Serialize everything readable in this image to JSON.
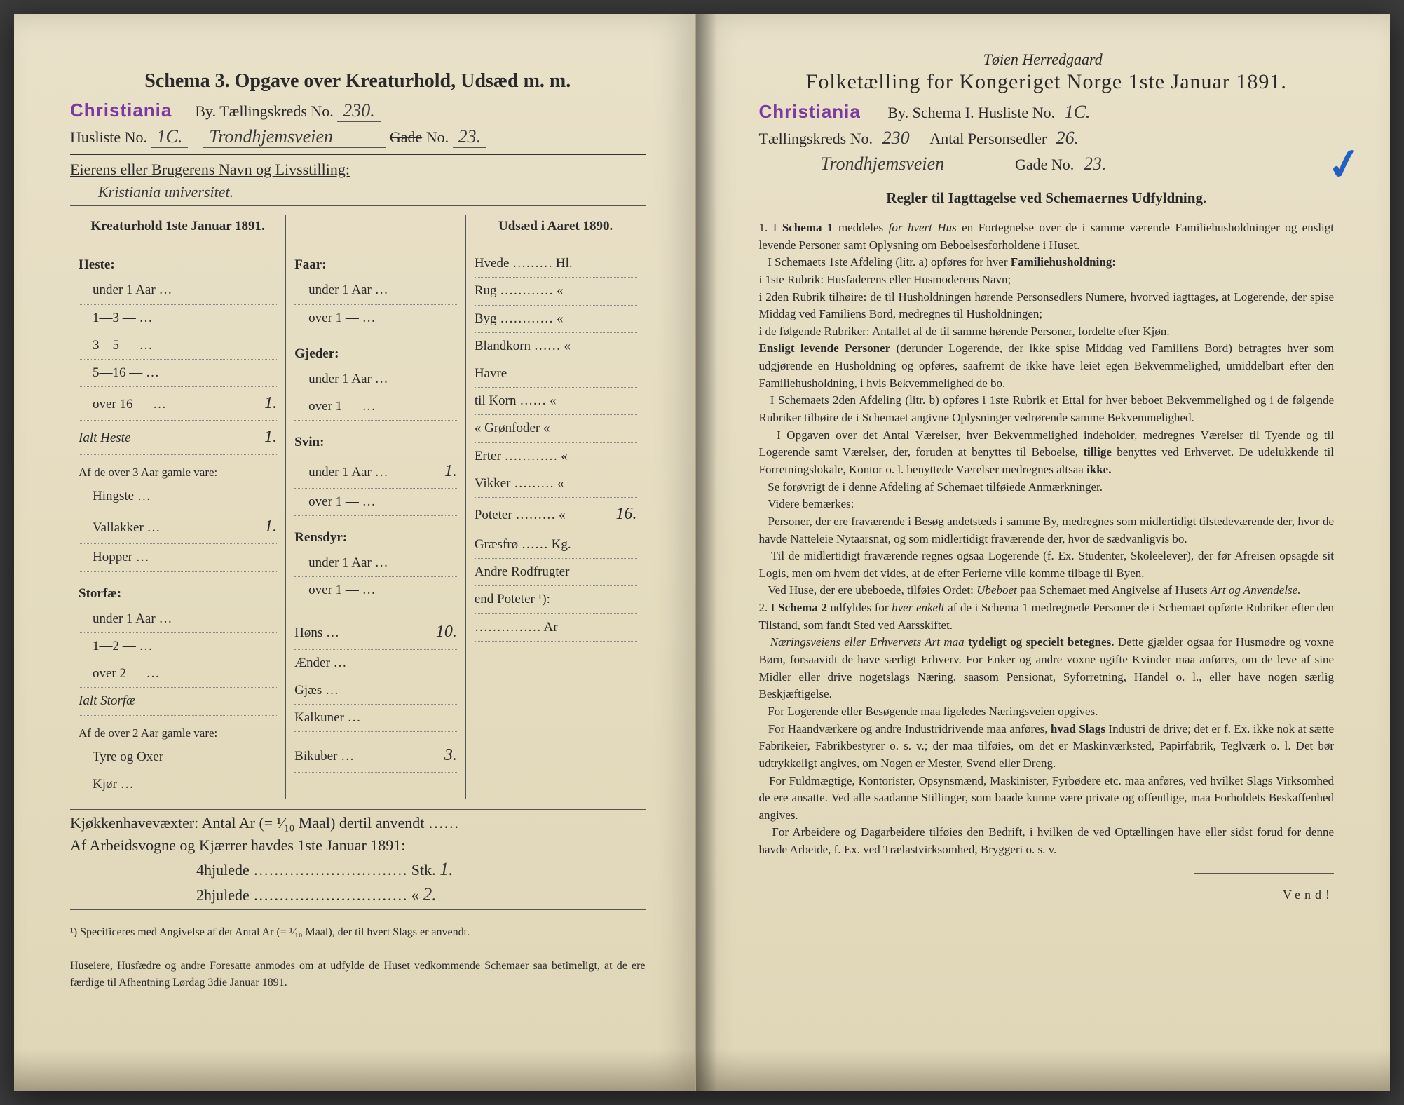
{
  "left": {
    "schema_title": "Schema 3.  Opgave over Kreaturhold, Udsæd m. m.",
    "stamp": "Christiania",
    "by_label": "By.  Tællingskreds No.",
    "kreds_no": "230.",
    "husliste_label": "Husliste No.",
    "husliste_no": "1C.",
    "gade_hand": "Trondhjemsveien",
    "gade_label": "Gade",
    "gade_no_label": "No.",
    "gade_no": "23.",
    "owner_label": "Eierens eller Brugerens Navn og Livsstilling:",
    "owner_hand": "Kristiania universitet.",
    "col1_header": "Kreaturhold 1ste Januar 1891.",
    "col3_header": "Udsæd i Aaret 1890.",
    "heste": {
      "title": "Heste:",
      "rows": [
        "under 1 Aar …",
        "1—3 — …",
        "3—5 — …",
        "5—16 — …",
        "over 16 — …"
      ],
      "over16_val": "1.",
      "ialt_label": "Ialt Heste",
      "ialt_val": "1.",
      "over3_label": "Af de over 3 Aar gamle vare:",
      "hingste": "Hingste …",
      "vallakker": "Vallakker …",
      "vallakker_val": "1.",
      "hopper": "Hopper …"
    },
    "storfae": {
      "title": "Storfæ:",
      "rows": [
        "under 1 Aar …",
        "1—2 — …",
        "over 2 — …"
      ],
      "ialt_label": "Ialt Storfæ",
      "over2_label": "Af de over 2 Aar gamle vare:",
      "tyre": "Tyre og Oxer",
      "kjor": "Kjør …"
    },
    "faar": {
      "title": "Faar:",
      "u1": "under 1 Aar …",
      "o1": "over 1 — …"
    },
    "gjeder": {
      "title": "Gjeder:",
      "u1": "under 1 Aar …",
      "o1": "over 1 — …"
    },
    "svin": {
      "title": "Svin:",
      "u1": "under 1 Aar …",
      "u1_val": "1.",
      "o1": "over 1 — …"
    },
    "rensdyr": {
      "title": "Rensdyr:",
      "u1": "under 1 Aar …",
      "o1": "over 1 — …"
    },
    "hons": {
      "label": "Høns …",
      "val": "10."
    },
    "aender": "Ænder …",
    "gjaes": "Gjæs …",
    "kalkuner": "Kalkuner …",
    "bikuber": {
      "label": "Bikuber …",
      "val": "3."
    },
    "udsaed": {
      "rows": [
        {
          "l": "Hvede ……… Hl.",
          "v": ""
        },
        {
          "l": "Rug ………… «",
          "v": ""
        },
        {
          "l": "Byg ………… «",
          "v": ""
        },
        {
          "l": "Blandkorn …… «",
          "v": ""
        },
        {
          "l": "Havre",
          "v": ""
        },
        {
          "l": "   til Korn …… «",
          "v": ""
        },
        {
          "l": "   « Grønfoder «",
          "v": ""
        },
        {
          "l": "Erter ………… «",
          "v": ""
        },
        {
          "l": "Vikker ……… «",
          "v": ""
        },
        {
          "l": "Poteter ……… «",
          "v": "16."
        },
        {
          "l": "Græsfrø …… Kg.",
          "v": ""
        },
        {
          "l": "Andre Rodfrugter",
          "v": ""
        },
        {
          "l": "  end Poteter ¹):",
          "v": ""
        },
        {
          "l": "…………… Ar",
          "v": ""
        }
      ]
    },
    "kjokken_label": "Kjøkkenhavevæxter:  Antal Ar (= ¹⁄₁₀ Maal) dertil anvendt ……",
    "arbeid_label": "Af Arbeidsvogne og Kjærrer havdes 1ste Januar 1891:",
    "hjul4_label": "4hjulede ………………………… Stk.",
    "hjul4_val": "1.",
    "hjul2_label": "2hjulede …………………………  «",
    "hjul2_val": "2.",
    "footnote": "¹) Specificeres med Angivelse af det Antal Ar (= ¹⁄₁₀ Maal), der til hvert Slags er anvendt.",
    "request": "Huseiere, Husfædre og andre Foresatte anmodes om at udfylde de Huset vedkommende Schemaer saa betimeligt, at de ere færdige til Afhentning Lørdag 3die Januar 1891."
  },
  "right": {
    "annotation": "Tøien Herredgaard",
    "title": "Folketælling for Kongeriget Norge 1ste Januar 1891.",
    "stamp": "Christiania",
    "by_label": "By.   Schema I.   Husliste No.",
    "husliste_no": "1C.",
    "kreds_label": "Tællingskreds No.",
    "kreds_no": "230",
    "antal_label": "Antal Personsedler",
    "antal_val": "26.",
    "gade_hand": "Trondhjemsveien",
    "gade_label": "Gade No.",
    "gade_no": "23.",
    "rules_header": "Regler til Iagttagelse ved Schemaernes Udfyldning.",
    "rules_html": "1. I <b>Schema 1</b> meddeles <i>for hvert Hus</i> en Fortegnelse over de i samme værende Familiehusholdninger og ensligt levende Personer samt Oplysning om Beboelsesforholdene i Huset.<br>&nbsp;&nbsp;&nbsp;I Schemaets 1ste Afdeling (litr. a) opføres for hver <b>Familiehusholdning:</b><br>i 1ste Rubrik: Husfaderens eller Husmoderens Navn;<br>i 2den Rubrik tilhøire: de til Husholdningen hørende Personsedlers Numere, hvorved iagttages, at Logerende, der spise Middag ved Familiens Bord, medregnes til Husholdningen;<br>i de følgende Rubriker: Antallet af de til samme hørende Personer, fordelte efter Kjøn.<br><b>Ensligt levende Personer</b> (derunder Logerende, der ikke spise Middag ved Familiens Bord) betragtes hver som udgjørende en Husholdning og opføres, saafremt de ikke have leiet egen Bekvemmelighed, umiddelbart efter den Familiehusholdning, i hvis Bekvemmelighed de bo.<br>&nbsp;&nbsp;&nbsp;I Schemaets 2den Afdeling (litr. b) opføres i 1ste Rubrik et Ettal for hver beboet Bekvemmelighed og i de følgende Rubriker tilhøire de i Schemaet angivne Oplysninger vedrørende samme Bekvemmelighed.<br>&nbsp;&nbsp;&nbsp;I Opgaven over det Antal Værelser, hver Bekvemmelighed indeholder, medregnes Værelser til Tyende og til Logerende samt Værelser, der, foruden at benyttes til Beboelse, <b>tillige</b> benyttes ved Erhvervet. De udelukkende til Forretningslokale, Kontor o. l. benyttede Værelser medregnes altsaa <b>ikke.</b><br>&nbsp;&nbsp;&nbsp;Se forøvrigt de i denne Afdeling af Schemaet tilføiede Anmærkninger.<br>&nbsp;&nbsp;&nbsp;Videre bemærkes:<br>&nbsp;&nbsp;&nbsp;Personer, der ere fraværende i Besøg andetsteds i samme By, medregnes som midlertidigt tilstedeværende der, hvor de havde Natteleie Nytaarsnat, og som midlertidigt fraværende der, hvor de sædvanligvis bo.<br>&nbsp;&nbsp;&nbsp;Til de midlertidigt fraværende regnes ogsaa Logerende (f. Ex. Studenter, Skoleelever), der før Afreisen opsagde sit Logis, men om hvem det vides, at de efter Ferierne ville komme tilbage til Byen.<br>&nbsp;&nbsp;&nbsp;Ved Huse, der ere ubeboede, tilføies Ordet: <i>Ubeboet</i> paa Schemaet med Angivelse af Husets <i>Art og Anvendelse.</i><br>2. I <b>Schema 2</b> udfyldes for <i>hver enkelt</i> af de i Schema 1 medregnede Personer de i Schemaet opførte Rubriker efter den Tilstand, som fandt Sted ved Aarsskiftet.<br>&nbsp;&nbsp;&nbsp;<i>Næringsveiens eller Erhvervets Art maa</i> <b>tydeligt og specielt betegnes.</b> Dette gjælder ogsaa for Husmødre og voxne Børn, forsaavidt de have særligt Erhverv. For Enker og andre voxne ugifte Kvinder maa anføres, om de leve af sine Midler eller drive nogetslags Næring, saasom Pensionat, Syforretning, Handel o. l., eller have nogen særlig Beskjæftigelse.<br>&nbsp;&nbsp;&nbsp;For Logerende eller Besøgende maa ligeledes Næringsveien opgives.<br>&nbsp;&nbsp;&nbsp;For Haandværkere og andre Industridrivende maa anføres, <b>hvad Slags</b> Industri de drive; det er f. Ex. ikke nok at sætte Fabrikeier, Fabrikbestyrer o. s. v.; der maa tilføies, om det er Maskinværksted, Papirfabrik, Teglværk o. l.  Det bør udtrykkeligt angives, om Nogen er Mester, Svend eller Dreng.<br>&nbsp;&nbsp;&nbsp;For Fuldmægtige, Kontorister, Opsynsmænd, Maskinister, Fyrbødere etc. maa anføres, ved hvilket Slags Virksomhed de ere ansatte. Ved alle saadanne Stillinger, som baade kunne være private og offentlige, maa Forholdets Beskaffenhed angives.<br>&nbsp;&nbsp;&nbsp;For Arbeidere og Dagarbeidere tilføies den Bedrift, i hvilken de ved Optællingen have eller sidst forud for denne havde Arbeide, f. Ex. ved Trælastvirksomhed, Bryggeri o. s. v.",
    "vend": "Vend!"
  }
}
